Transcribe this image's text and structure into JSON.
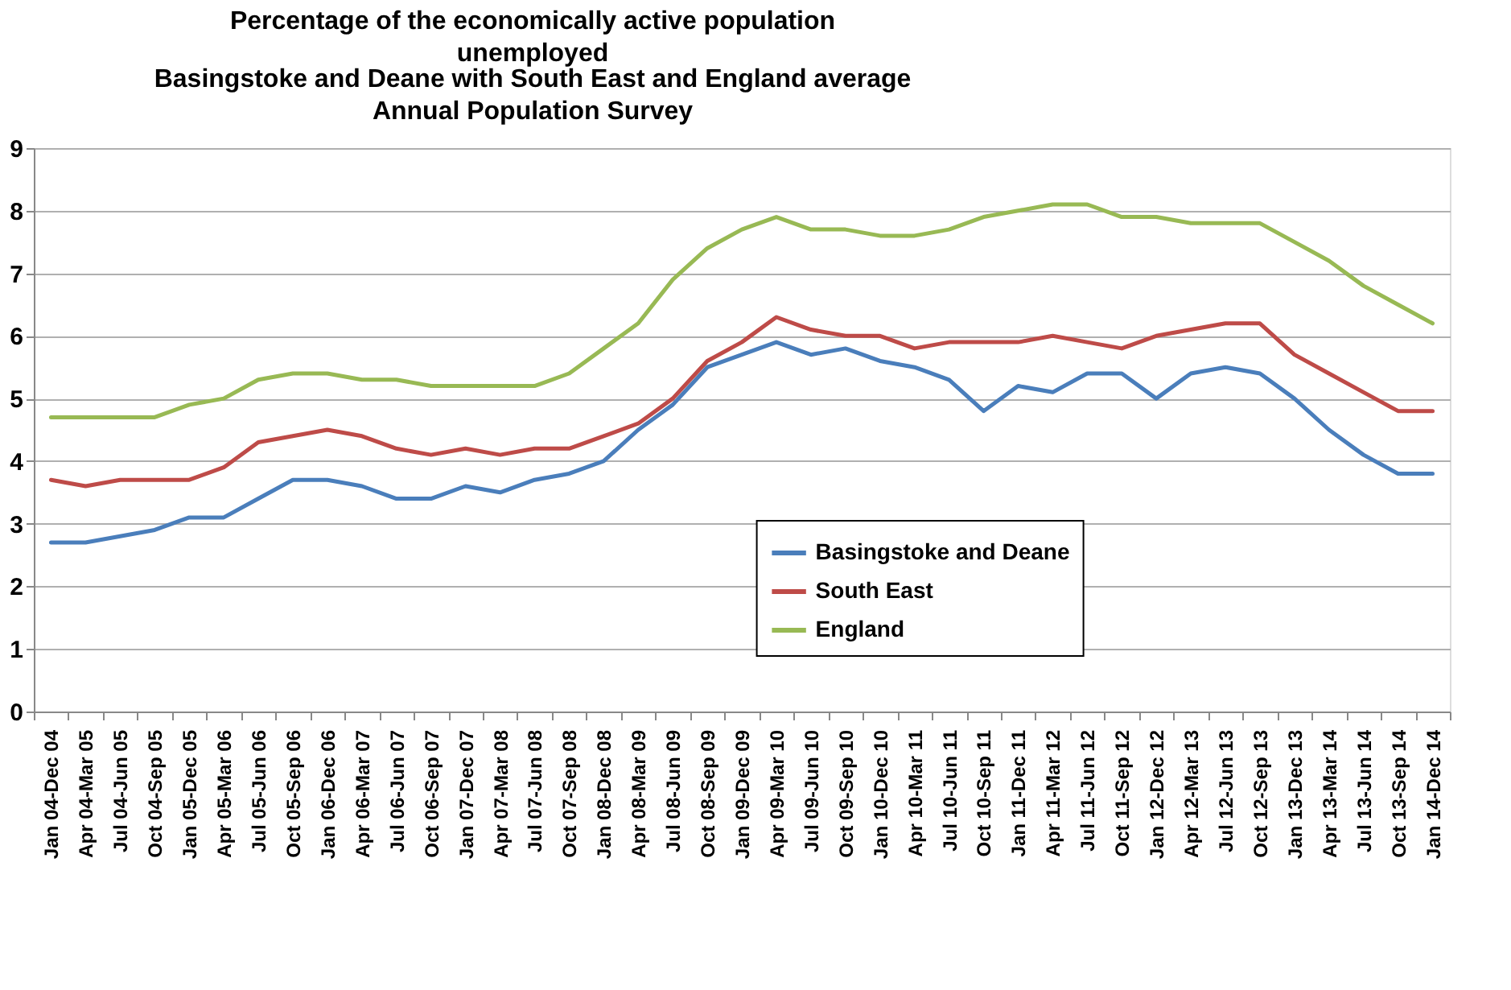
{
  "chart_data": {
    "type": "line",
    "title": "Percentage of the economically active population unemployed",
    "subtitle": "Basingstoke and Deane with South East and England average",
    "annotations": [
      "Annual Population Survey"
    ],
    "categories": [
      "Jan 04-Dec 04",
      "Apr 04-Mar 05",
      "Jul 04-Jun 05",
      "Oct 04-Sep 05",
      "Jan 05-Dec 05",
      "Apr 05-Mar 06",
      "Jul 05-Jun 06",
      "Oct 05-Sep 06",
      "Jan 06-Dec 06",
      "Apr 06-Mar 07",
      "Jul 06-Jun 07",
      "Oct 06-Sep 07",
      "Jan 07-Dec 07",
      "Apr 07-Mar 08",
      "Jul 07-Jun 08",
      "Oct 07-Sep 08",
      "Jan 08-Dec 08",
      "Apr 08-Mar 09",
      "Jul 08-Jun 09",
      "Oct 08-Sep 09",
      "Jan 09-Dec 09",
      "Apr 09-Mar 10",
      "Jul 09-Jun 10",
      "Oct 09-Sep 10",
      "Jan 10-Dec 10",
      "Apr 10-Mar 11",
      "Jul 10-Jun 11",
      "Oct 10-Sep 11",
      "Jan 11-Dec 11",
      "Apr 11-Mar 12",
      "Jul 11-Jun 12",
      "Oct 11-Sep 12",
      "Jan 12-Dec 12",
      "Apr 12-Mar 13",
      "Jul 12-Jun 13",
      "Oct 12-Sep 13",
      "Jan 13-Dec 13",
      "Apr 13-Mar 14",
      "Jul 13-Jun 14",
      "Oct 13-Sep 14",
      "Jan 14-Dec 14"
    ],
    "series": [
      {
        "name": "Basingstoke and Deane",
        "color": "#4a7ebb",
        "values": [
          2.7,
          2.7,
          2.8,
          2.9,
          3.1,
          3.1,
          3.4,
          3.7,
          3.7,
          3.6,
          3.4,
          3.4,
          3.6,
          3.5,
          3.7,
          3.8,
          4.0,
          4.5,
          4.9,
          5.5,
          5.7,
          5.9,
          5.7,
          5.8,
          5.6,
          5.5,
          5.3,
          4.8,
          5.2,
          5.1,
          5.4,
          5.4,
          5.0,
          5.4,
          5.5,
          5.4,
          5.0,
          4.5,
          4.1,
          3.8,
          3.8
        ]
      },
      {
        "name": "South East",
        "color": "#be4b48",
        "values": [
          3.7,
          3.6,
          3.7,
          3.7,
          3.7,
          3.9,
          4.3,
          4.4,
          4.5,
          4.4,
          4.2,
          4.1,
          4.2,
          4.1,
          4.2,
          4.2,
          4.4,
          4.6,
          5.0,
          5.6,
          5.9,
          6.3,
          6.1,
          6.0,
          6.0,
          5.8,
          5.9,
          5.9,
          5.9,
          6.0,
          5.9,
          5.8,
          6.0,
          6.1,
          6.2,
          6.2,
          5.7,
          5.4,
          5.1,
          4.8,
          4.8
        ]
      },
      {
        "name": "England",
        "color": "#98b954",
        "values": [
          4.7,
          4.7,
          4.7,
          4.7,
          4.9,
          5.0,
          5.3,
          5.4,
          5.4,
          5.3,
          5.3,
          5.2,
          5.2,
          5.2,
          5.2,
          5.4,
          5.8,
          6.2,
          6.9,
          7.4,
          7.7,
          7.9,
          7.7,
          7.7,
          7.6,
          7.6,
          7.7,
          7.9,
          8.0,
          8.1,
          8.1,
          7.9,
          7.9,
          7.8,
          7.8,
          7.8,
          7.5,
          7.2,
          6.8,
          6.5,
          6.2
        ]
      }
    ],
    "ylim": [
      0,
      9
    ],
    "yticks": [
      0,
      1,
      2,
      3,
      4,
      5,
      6,
      7,
      8,
      9
    ],
    "grid": "y",
    "legend": "bottom right"
  }
}
